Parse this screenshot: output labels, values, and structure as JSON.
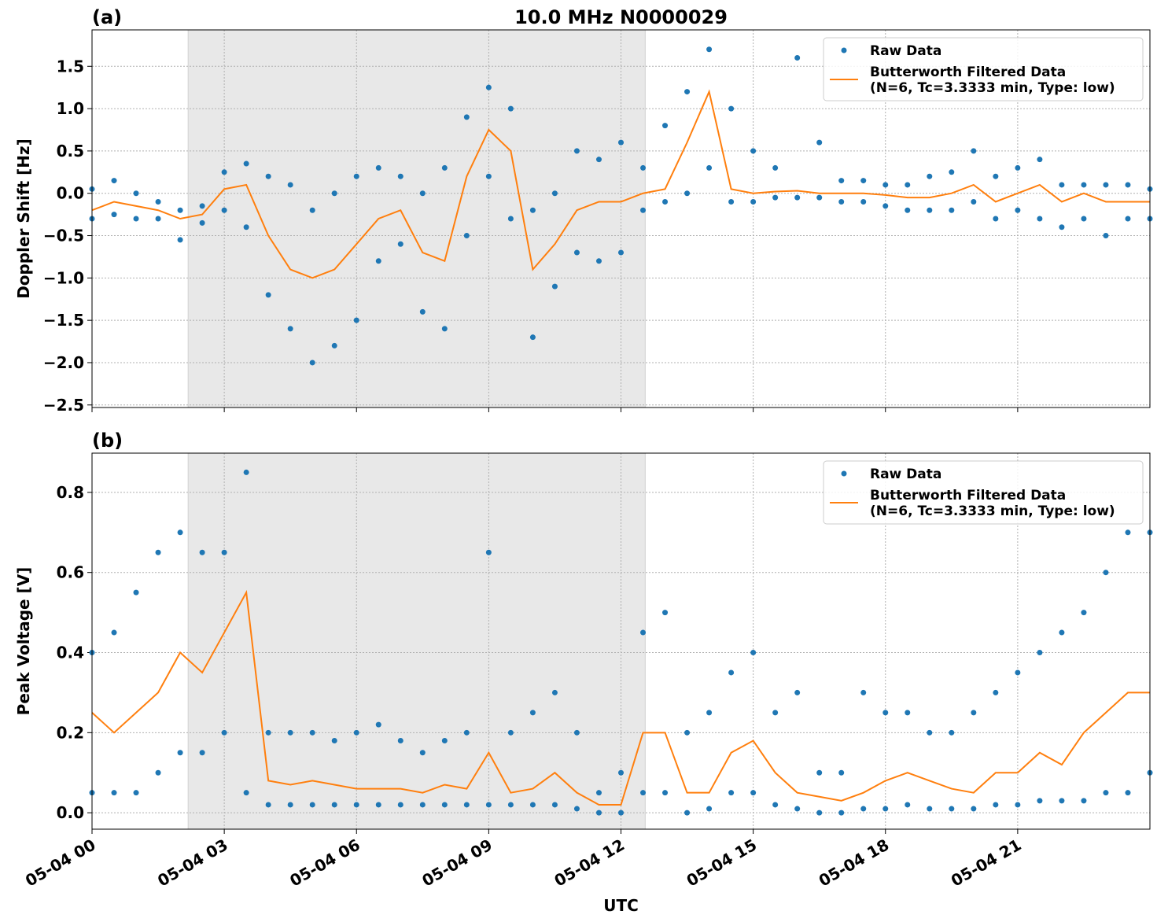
{
  "chart_data": [
    {
      "type": "scatter-line",
      "label": "(a)",
      "title": "10.0 MHz N0000029",
      "y_label": "Doppler Shift [Hz]",
      "xlim": [
        0,
        24
      ],
      "xticks": [
        0,
        3,
        6,
        9,
        12,
        15,
        18,
        21
      ],
      "ylim": [
        -2.53,
        1.93
      ],
      "yticks": [
        {
          "value": -2.5,
          "label": "−2.5"
        },
        {
          "value": -2,
          "label": "−2.0"
        },
        {
          "value": -1.5,
          "label": "−1.5"
        },
        {
          "value": -1,
          "label": "−1.0"
        },
        {
          "value": -0.5,
          "label": "−0.5"
        },
        {
          "value": 0,
          "label": "0.0"
        },
        0.5,
        {
          "value": 1,
          "label": "1.0"
        },
        1.5
      ],
      "grid": true,
      "shade": [
        2.18,
        12.55
      ],
      "legend": "upper right",
      "series": [
        {
          "name": "Raw Data",
          "kind": "scatter",
          "color": "#1f77b4",
          "x": [
            0,
            0,
            0.5,
            0.5,
            1,
            1,
            1.5,
            1.5,
            2,
            2,
            2.5,
            2.5,
            3,
            3,
            3.5,
            3.5,
            4,
            4,
            4.5,
            4.5,
            5,
            5,
            5.5,
            5.5,
            6,
            6,
            6.5,
            6.5,
            7,
            7,
            7.5,
            7.5,
            8,
            8,
            8.5,
            8.5,
            9,
            9,
            9.5,
            9.5,
            10,
            10,
            10.5,
            10.5,
            11,
            11,
            11.5,
            11.5,
            12,
            12,
            12.5,
            12.5,
            13,
            13,
            13.5,
            13.5,
            14,
            14,
            14.5,
            14.5,
            15,
            15,
            15.5,
            15.5,
            16,
            16,
            16.5,
            16.5,
            17,
            17,
            17.5,
            17.5,
            18,
            18,
            18.5,
            18.5,
            19,
            19,
            19.5,
            19.5,
            20,
            20,
            20.5,
            20.5,
            21,
            21,
            21.5,
            21.5,
            22,
            22,
            22.5,
            22.5,
            23,
            23,
            23.5,
            23.5,
            24,
            24
          ],
          "values": [
            -0.3,
            0.05,
            -0.25,
            0.15,
            -0.3,
            0,
            -0.3,
            -0.1,
            -0.55,
            -0.2,
            -0.35,
            -0.15,
            -0.2,
            0.25,
            -0.4,
            0.35,
            -1.2,
            0.2,
            -1.6,
            0.1,
            -2,
            -0.2,
            -1.8,
            0,
            -1.5,
            0.2,
            -0.8,
            0.3,
            -0.6,
            0.2,
            -1.4,
            0,
            -1.6,
            0.3,
            -0.5,
            0.9,
            0.2,
            1.25,
            -0.3,
            1,
            -1.7,
            -0.2,
            -1.1,
            0,
            -0.7,
            0.5,
            -0.8,
            0.4,
            -0.7,
            0.6,
            -0.2,
            0.3,
            -0.1,
            0.8,
            0,
            1.2,
            0.3,
            1.7,
            -0.1,
            1,
            -0.1,
            0.5,
            -0.05,
            0.3,
            -0.05,
            1.6,
            -0.05,
            0.6,
            -0.1,
            0.15,
            -0.1,
            0.15,
            -0.15,
            0.1,
            -0.2,
            0.1,
            -0.2,
            0.2,
            -0.2,
            0.25,
            -0.1,
            0.5,
            -0.3,
            0.2,
            -0.2,
            0.3,
            -0.3,
            0.4,
            -0.4,
            0.1,
            -0.3,
            0.1,
            -0.5,
            0.1,
            -0.3,
            0.1,
            -0.3,
            0.05
          ]
        },
        {
          "name": "Butterworth Filtered Data\n(N=6, Tc=3.3333 min, Type: low)",
          "kind": "line",
          "color": "#ff7f0e",
          "x": [
            0,
            0.5,
            1,
            1.5,
            2,
            2.5,
            3,
            3.5,
            4,
            4.5,
            5,
            5.5,
            6,
            6.5,
            7,
            7.5,
            8,
            8.5,
            9,
            9.5,
            10,
            10.5,
            11,
            11.5,
            12,
            12.5,
            13,
            13.5,
            14,
            14.5,
            15,
            15.5,
            16,
            16.5,
            17,
            17.5,
            18,
            18.5,
            19,
            19.5,
            20,
            20.5,
            21,
            21.5,
            22,
            22.5,
            23,
            23.5,
            24
          ],
          "values": [
            -0.2,
            -0.1,
            -0.15,
            -0.2,
            -0.3,
            -0.25,
            0.05,
            0.1,
            -0.5,
            -0.9,
            -1,
            -0.9,
            -0.6,
            -0.3,
            -0.2,
            -0.7,
            -0.8,
            0.2,
            0.75,
            0.5,
            -0.9,
            -0.6,
            -0.2,
            -0.1,
            -0.1,
            0,
            0.05,
            0.6,
            1.2,
            0.05,
            0,
            0.02,
            0.03,
            0,
            0,
            0,
            -0.02,
            -0.05,
            -0.05,
            0,
            0.1,
            -0.1,
            0,
            0.1,
            -0.1,
            0,
            -0.1,
            -0.1,
            -0.1
          ]
        }
      ]
    },
    {
      "type": "scatter-line",
      "label": "(b)",
      "y_label": "Peak Voltage [V]",
      "x_label": "UTC",
      "xlim": [
        0,
        24
      ],
      "xticks": [
        {
          "value": 0,
          "label": "05-04 00"
        },
        {
          "value": 3,
          "label": "05-04 03"
        },
        {
          "value": 6,
          "label": "05-04 06"
        },
        {
          "value": 9,
          "label": "05-04 09"
        },
        {
          "value": 12,
          "label": "05-04 12"
        },
        {
          "value": 15,
          "label": "05-04 15"
        },
        {
          "value": 18,
          "label": "05-04 18"
        },
        {
          "value": 21,
          "label": "05-04 21"
        }
      ],
      "ylim": [
        -0.041,
        0.898
      ],
      "yticks": [
        {
          "value": 0,
          "label": "0.0"
        },
        0.2,
        0.4,
        0.6,
        0.8
      ],
      "grid": true,
      "shade": [
        2.18,
        12.55
      ],
      "legend": "upper right",
      "series": [
        {
          "name": "Raw Data",
          "kind": "scatter",
          "color": "#1f77b4",
          "x": [
            0,
            0,
            0.5,
            0.5,
            1,
            1,
            1.5,
            1.5,
            2,
            2,
            2.5,
            2.5,
            3,
            3,
            3.5,
            3.5,
            4,
            4,
            4.5,
            4.5,
            5,
            5,
            5.5,
            5.5,
            6,
            6,
            6.5,
            6.5,
            7,
            7,
            7.5,
            7.5,
            8,
            8,
            8.5,
            8.5,
            9,
            9,
            9.5,
            9.5,
            10,
            10,
            10.5,
            10.5,
            11,
            11,
            11.5,
            11.5,
            12,
            12,
            12.5,
            12.5,
            13,
            13,
            13.5,
            13.5,
            14,
            14,
            14.5,
            14.5,
            15,
            15,
            15.5,
            15.5,
            16,
            16,
            16.5,
            16.5,
            17,
            17,
            17.5,
            17.5,
            18,
            18,
            18.5,
            18.5,
            19,
            19,
            19.5,
            19.5,
            20,
            20,
            20.5,
            20.5,
            21,
            21,
            21.5,
            21.5,
            22,
            22,
            22.5,
            22.5,
            23,
            23,
            23.5,
            23.5,
            24,
            24
          ],
          "values": [
            0.05,
            0.4,
            0.05,
            0.45,
            0.05,
            0.55,
            0.1,
            0.65,
            0.15,
            0.7,
            0.15,
            0.65,
            0.2,
            0.65,
            0.05,
            0.85,
            0.02,
            0.2,
            0.02,
            0.2,
            0.02,
            0.2,
            0.02,
            0.18,
            0.02,
            0.2,
            0.02,
            0.22,
            0.02,
            0.18,
            0.02,
            0.15,
            0.02,
            0.18,
            0.02,
            0.2,
            0.02,
            0.65,
            0.02,
            0.2,
            0.02,
            0.25,
            0.02,
            0.3,
            0.01,
            0.2,
            0,
            0.05,
            0,
            0.1,
            0.05,
            0.45,
            0.05,
            0.5,
            0,
            0.2,
            0.01,
            0.25,
            0.05,
            0.35,
            0.05,
            0.4,
            0.02,
            0.25,
            0.01,
            0.3,
            0,
            0.1,
            0,
            0.1,
            0.01,
            0.3,
            0.01,
            0.25,
            0.02,
            0.25,
            0.01,
            0.2,
            0.01,
            0.2,
            0.01,
            0.25,
            0.02,
            0.3,
            0.02,
            0.35,
            0.03,
            0.4,
            0.03,
            0.45,
            0.03,
            0.5,
            0.05,
            0.6,
            0.05,
            0.7,
            0.1,
            0.7
          ]
        },
        {
          "name": "Butterworth Filtered Data\n(N=6, Tc=3.3333 min, Type: low)",
          "kind": "line",
          "color": "#ff7f0e",
          "x": [
            0,
            0.5,
            1,
            1.5,
            2,
            2.5,
            3,
            3.5,
            4,
            4.5,
            5,
            5.5,
            6,
            6.5,
            7,
            7.5,
            8,
            8.5,
            9,
            9.5,
            10,
            10.5,
            11,
            11.5,
            12,
            12.5,
            13,
            13.5,
            14,
            14.5,
            15,
            15.5,
            16,
            16.5,
            17,
            17.5,
            18,
            18.5,
            19,
            19.5,
            20,
            20.5,
            21,
            21.5,
            22,
            22.5,
            23,
            23.5,
            24
          ],
          "values": [
            0.25,
            0.2,
            0.25,
            0.3,
            0.4,
            0.35,
            0.45,
            0.55,
            0.08,
            0.07,
            0.08,
            0.07,
            0.06,
            0.06,
            0.06,
            0.05,
            0.07,
            0.06,
            0.15,
            0.05,
            0.06,
            0.1,
            0.05,
            0.02,
            0.02,
            0.2,
            0.2,
            0.05,
            0.05,
            0.15,
            0.18,
            0.1,
            0.05,
            0.04,
            0.03,
            0.05,
            0.08,
            0.1,
            0.08,
            0.06,
            0.05,
            0.1,
            0.1,
            0.15,
            0.12,
            0.2,
            0.25,
            0.3,
            0.3
          ]
        }
      ]
    }
  ]
}
